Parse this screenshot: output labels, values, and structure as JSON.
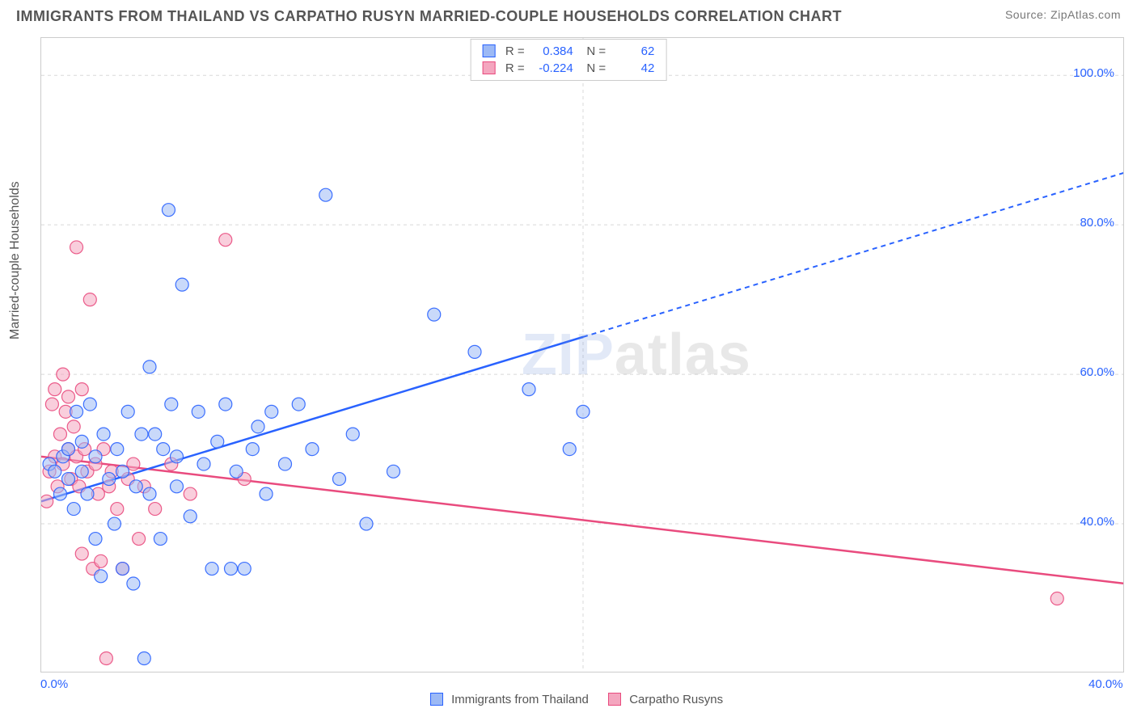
{
  "title": "IMMIGRANTS FROM THAILAND VS CARPATHO RUSYN MARRIED-COUPLE HOUSEHOLDS CORRELATION CHART",
  "source_label": "Source: ZipAtlas.com",
  "y_axis_label": "Married-couple Households",
  "watermark_a": "ZIP",
  "watermark_b": "atlas",
  "chart": {
    "type": "scatter",
    "xlim": [
      0,
      40
    ],
    "ylim": [
      20,
      105
    ],
    "x_ticks": [
      0.0,
      40.0
    ],
    "x_tick_labels": [
      "0.0%",
      "40.0%"
    ],
    "y_ticks": [
      40.0,
      60.0,
      80.0,
      100.0
    ],
    "y_tick_labels": [
      "40.0%",
      "60.0%",
      "80.0%",
      "100.0%"
    ],
    "grid_color": "#d8d8d8",
    "axis_color": "#888888",
    "plot_bg": "#ffffff",
    "series": [
      {
        "name": "Immigrants from Thailand",
        "color_stroke": "#2962ff",
        "color_fill": "#9cb9f5",
        "marker_radius": 8,
        "marker_opacity": 0.55,
        "r_value": "0.384",
        "n_value": "62",
        "trend": {
          "y_at_x0": 43,
          "y_at_x40": 87,
          "solid_until_x": 20
        },
        "points": [
          [
            0.3,
            48
          ],
          [
            0.5,
            47
          ],
          [
            0.7,
            44
          ],
          [
            0.8,
            49
          ],
          [
            1.0,
            46
          ],
          [
            1.0,
            50
          ],
          [
            1.2,
            42
          ],
          [
            1.3,
            55
          ],
          [
            1.5,
            47
          ],
          [
            1.5,
            51
          ],
          [
            1.7,
            44
          ],
          [
            1.8,
            56
          ],
          [
            2.0,
            38
          ],
          [
            2.0,
            49
          ],
          [
            2.2,
            33
          ],
          [
            2.3,
            52
          ],
          [
            2.5,
            46
          ],
          [
            2.7,
            40
          ],
          [
            2.8,
            50
          ],
          [
            3.0,
            34
          ],
          [
            3.0,
            47
          ],
          [
            3.2,
            55
          ],
          [
            3.4,
            32
          ],
          [
            3.5,
            45
          ],
          [
            3.7,
            52
          ],
          [
            3.8,
            22
          ],
          [
            4.0,
            44
          ],
          [
            4.0,
            61
          ],
          [
            4.2,
            52
          ],
          [
            4.4,
            38
          ],
          [
            4.5,
            50
          ],
          [
            4.7,
            82
          ],
          [
            4.8,
            56
          ],
          [
            5.0,
            49
          ],
          [
            5.0,
            45
          ],
          [
            5.2,
            72
          ],
          [
            5.5,
            41
          ],
          [
            5.8,
            55
          ],
          [
            6.0,
            48
          ],
          [
            6.3,
            34
          ],
          [
            6.5,
            51
          ],
          [
            6.8,
            56
          ],
          [
            7.0,
            34
          ],
          [
            7.2,
            47
          ],
          [
            7.5,
            34
          ],
          [
            7.8,
            50
          ],
          [
            8.0,
            53
          ],
          [
            8.3,
            44
          ],
          [
            8.5,
            55
          ],
          [
            9.0,
            48
          ],
          [
            9.5,
            56
          ],
          [
            10.0,
            50
          ],
          [
            10.5,
            84
          ],
          [
            11.0,
            46
          ],
          [
            11.5,
            52
          ],
          [
            12.0,
            40
          ],
          [
            13.0,
            47
          ],
          [
            14.5,
            68
          ],
          [
            16.0,
            63
          ],
          [
            18.0,
            58
          ],
          [
            19.5,
            50
          ],
          [
            20.0,
            55
          ]
        ]
      },
      {
        "name": "Carpatho Rusyns",
        "color_stroke": "#e94b7e",
        "color_fill": "#f4a6bf",
        "marker_radius": 8,
        "marker_opacity": 0.55,
        "r_value": "-0.224",
        "n_value": "42",
        "trend": {
          "y_at_x0": 49,
          "y_at_x40": 32,
          "solid_until_x": 40
        },
        "points": [
          [
            0.2,
            43
          ],
          [
            0.3,
            47
          ],
          [
            0.4,
            56
          ],
          [
            0.5,
            49
          ],
          [
            0.5,
            58
          ],
          [
            0.6,
            45
          ],
          [
            0.7,
            52
          ],
          [
            0.8,
            60
          ],
          [
            0.8,
            48
          ],
          [
            0.9,
            55
          ],
          [
            1.0,
            50
          ],
          [
            1.0,
            57
          ],
          [
            1.1,
            46
          ],
          [
            1.2,
            53
          ],
          [
            1.3,
            49
          ],
          [
            1.3,
            77
          ],
          [
            1.4,
            45
          ],
          [
            1.5,
            58
          ],
          [
            1.5,
            36
          ],
          [
            1.6,
            50
          ],
          [
            1.7,
            47
          ],
          [
            1.8,
            70
          ],
          [
            1.9,
            34
          ],
          [
            2.0,
            48
          ],
          [
            2.1,
            44
          ],
          [
            2.2,
            35
          ],
          [
            2.3,
            50
          ],
          [
            2.4,
            22
          ],
          [
            2.5,
            45
          ],
          [
            2.6,
            47
          ],
          [
            2.8,
            42
          ],
          [
            3.0,
            34
          ],
          [
            3.2,
            46
          ],
          [
            3.4,
            48
          ],
          [
            3.6,
            38
          ],
          [
            3.8,
            45
          ],
          [
            4.2,
            42
          ],
          [
            4.8,
            48
          ],
          [
            5.5,
            44
          ],
          [
            6.8,
            78
          ],
          [
            7.5,
            46
          ],
          [
            37.5,
            30
          ]
        ]
      }
    ],
    "x_legend_series1": "Immigrants from Thailand",
    "x_legend_series2": "Carpatho Rusyns",
    "r_label": "R =",
    "n_label": "N ="
  },
  "colors": {
    "title_text": "#555555",
    "tick_text": "#2962ff"
  }
}
